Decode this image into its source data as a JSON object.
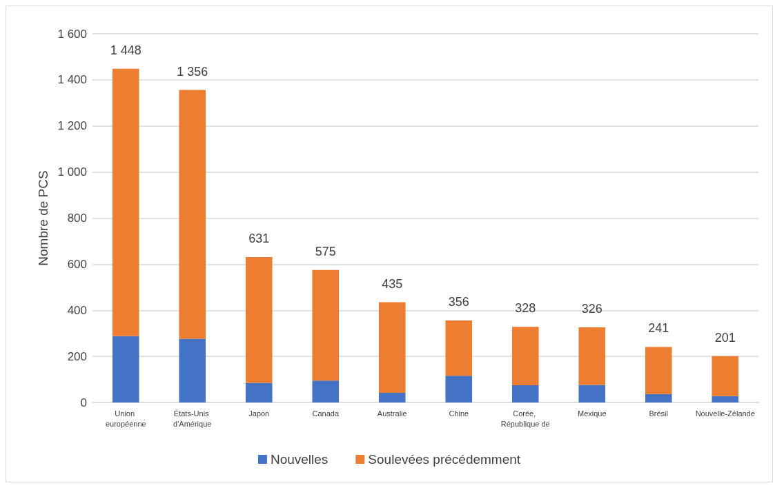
{
  "chart_data": {
    "type": "bar",
    "stacked": true,
    "ylabel": "Nombre de PCS",
    "categories": [
      "Union européenne",
      "États-Unis d'Amérique",
      "Japon",
      "Canada",
      "Australie",
      "Chine",
      "Corée, République de",
      "Mexique",
      "Brésil",
      "Nouvelle-Zélande"
    ],
    "series": [
      {
        "name": "Nouvelles",
        "color": "#4472c4",
        "values": [
          288,
          277,
          85,
          95,
          42,
          116,
          75,
          76,
          37,
          28
        ]
      },
      {
        "name": "Soulevées précédemment",
        "color": "#ed7d31",
        "values": [
          1160,
          1079,
          546,
          480,
          393,
          240,
          253,
          250,
          204,
          173
        ]
      }
    ],
    "totals": [
      "1 448",
      "1 356",
      "631",
      "575",
      "435",
      "356",
      "328",
      "326",
      "241",
      "201"
    ],
    "ylim": [
      0,
      1600
    ],
    "yticks": [
      0,
      200,
      400,
      600,
      800,
      {
        "value": 1000,
        "label": "1 000"
      },
      {
        "value": 1200,
        "label": "1 200"
      },
      {
        "value": 1400,
        "label": "1 400"
      },
      {
        "value": 1600,
        "label": "1 600"
      }
    ],
    "grid": "y",
    "legend": "bottom"
  }
}
